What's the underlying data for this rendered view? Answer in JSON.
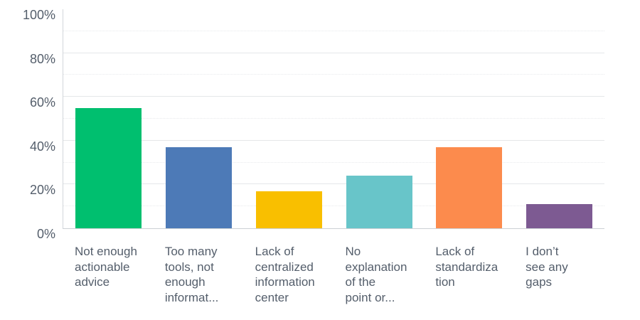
{
  "chart_data": {
    "type": "bar",
    "title": "",
    "xlabel": "",
    "ylabel": "",
    "categories": [
      "Not enough actionable advice",
      "Too many tools, not enough informat...",
      "Lack of centralized information center",
      "No explanation of the point or...",
      "Lack of standardization",
      "I don't see any gaps"
    ],
    "values": [
      55,
      37,
      17,
      24,
      37,
      11
    ],
    "unit": "%",
    "ylim": [
      0,
      100
    ],
    "yticks": [
      0,
      20,
      40,
      60,
      80,
      100
    ],
    "grid": {
      "orientation": "horizontal",
      "major_step_pct": 20,
      "minor_step_pct": 10,
      "minor_style": "dotted"
    },
    "legend": "none",
    "bar_colors": [
      "#00bf6f",
      "#4d7ab7",
      "#f9bf00",
      "#68c5c9",
      "#fc8b4d",
      "#7d5a92"
    ]
  },
  "y_axis": {
    "tick_labels": [
      "100%",
      "80%",
      "60%",
      "40%",
      "20%",
      "0%"
    ]
  },
  "x_axis": {
    "wrapped_labels": [
      "Not enough\nactionable\nadvice",
      "Too many\ntools, not\nenough\ninformat...",
      "Lack of\ncentralized\ninformation\ncenter",
      "No\nexplanation\nof the\npoint or...",
      "Lack of\nstandardiza\ntion",
      "I don’t\nsee any\ngaps"
    ]
  },
  "colors": {
    "background": "#ffffff",
    "axis_line": "#d2d6da",
    "grid_major": "#e5e7e9",
    "grid_minor": "#e8eaec",
    "label_text": "#545e6b"
  }
}
